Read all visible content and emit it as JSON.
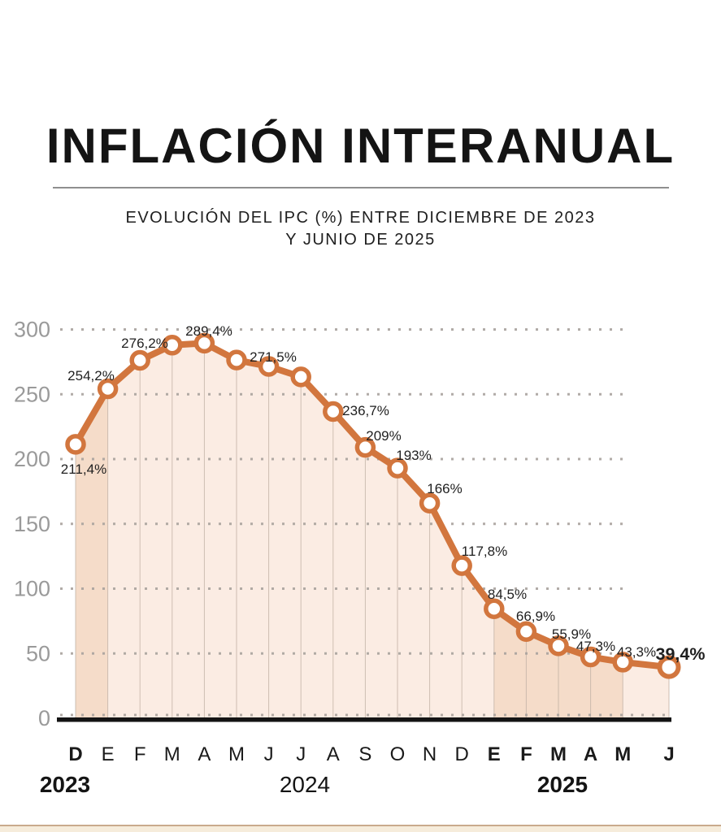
{
  "header": {
    "title": "INFLACIÓN INTERANUAL",
    "subtitle_line1": "EVOLUCIÓN DEL IPC (%) ENTRE DICIEMBRE DE 2023",
    "subtitle_line2": "Y JUNIO DE 2025"
  },
  "chart_data": {
    "type": "line",
    "title": "INFLACIÓN INTERANUAL",
    "subtitle": "EVOLUCIÓN DEL IPC (%) ENTRE DICIEMBRE DE 2023 Y JUNIO DE 2025",
    "xlabel": "",
    "ylabel": "",
    "ylim": [
      0,
      300
    ],
    "y_ticks": [
      0,
      50,
      100,
      150,
      200,
      250,
      300
    ],
    "grid": "dotted-horizontal",
    "legend": "none",
    "points": [
      {
        "month": "D",
        "year": 2023,
        "value": 211.4,
        "label": "211,4%"
      },
      {
        "month": "E",
        "year": 2024,
        "value": 254.2,
        "label": "254,2%"
      },
      {
        "month": "F",
        "year": 2024,
        "value": 276.2,
        "label": "276,2%"
      },
      {
        "month": "M",
        "year": 2024,
        "value": 287.9,
        "label": ""
      },
      {
        "month": "A",
        "year": 2024,
        "value": 289.4,
        "label": "289,4%"
      },
      {
        "month": "M",
        "year": 2024,
        "value": 276.4,
        "label": ""
      },
      {
        "month": "J",
        "year": 2024,
        "value": 271.5,
        "label": "271,5%"
      },
      {
        "month": "J",
        "year": 2024,
        "value": 263.4,
        "label": ""
      },
      {
        "month": "A",
        "year": 2024,
        "value": 236.7,
        "label": "236,7%"
      },
      {
        "month": "S",
        "year": 2024,
        "value": 209,
        "label": "209%"
      },
      {
        "month": "O",
        "year": 2024,
        "value": 193,
        "label": "193%"
      },
      {
        "month": "N",
        "year": 2024,
        "value": 166,
        "label": "166%"
      },
      {
        "month": "D",
        "year": 2024,
        "value": 117.8,
        "label": "117,8%"
      },
      {
        "month": "E",
        "year": 2025,
        "value": 84.5,
        "label": "84,5%"
      },
      {
        "month": "F",
        "year": 2025,
        "value": 66.9,
        "label": "66,9%"
      },
      {
        "month": "M",
        "year": 2025,
        "value": 55.9,
        "label": "55,9%"
      },
      {
        "month": "A",
        "year": 2025,
        "value": 47.3,
        "label": "47,3%"
      },
      {
        "month": "M",
        "year": 2025,
        "value": 43.3,
        "label": "43,3%"
      },
      {
        "month": "J",
        "year": 2025,
        "value": 39.4,
        "label": "39,4%",
        "emphasis": true
      }
    ],
    "bold_month_indices": [
      0,
      13,
      14,
      15,
      16,
      17,
      18
    ],
    "dark_column_indices": [
      0,
      13,
      14,
      15,
      16
    ],
    "years": [
      {
        "label": "2023",
        "bold": true
      },
      {
        "label": "2024",
        "bold": false
      },
      {
        "label": "2025",
        "bold": true
      }
    ],
    "colors": {
      "line": "#d2763e",
      "marker_fill": "#ffffff",
      "area_light": "#fbece3",
      "area_dark": "#f5dcc9",
      "separator": "#c3b2a6",
      "grid_dot": "#a9a39e",
      "axis": "#141414",
      "tick_label": "#9a9a9a",
      "data_label": "#1f1f1f",
      "month_label": "#1a1a1a"
    }
  }
}
